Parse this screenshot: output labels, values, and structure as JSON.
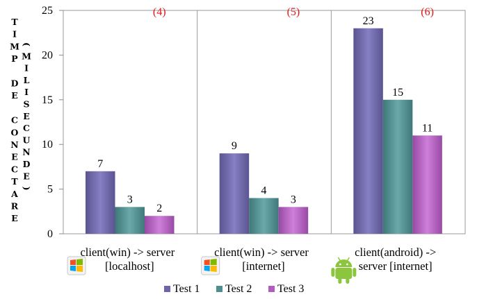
{
  "chart_data": {
    "type": "bar",
    "title": "",
    "categories": [
      [
        "client(win) -> server",
        "[localhost]"
      ],
      [
        "client(win) -> server",
        "[internet]"
      ],
      [
        "client(android) ->",
        "server [internet]"
      ]
    ],
    "category_icons": [
      "windows-logo-icon",
      "windows-logo-icon",
      "android-robot-icon"
    ],
    "series": [
      {
        "name": "Test 1",
        "values": [
          7,
          9,
          23
        ],
        "color": "#6b66a8"
      },
      {
        "name": "Test 2",
        "values": [
          3,
          4,
          15
        ],
        "color": "#4e8e8f"
      },
      {
        "name": "Test 3",
        "values": [
          2,
          3,
          11
        ],
        "color": "#b25cbf"
      }
    ],
    "data_labels": [
      [
        "7",
        "9",
        "23"
      ],
      [
        "3",
        "4",
        "15"
      ],
      [
        "2",
        "3",
        "11"
      ]
    ],
    "annotations": [
      "(4)",
      "(5)",
      "(6)"
    ],
    "ylabel_left": [
      "T",
      "I",
      "M",
      "P",
      "",
      "D",
      "E",
      "",
      "C",
      "O",
      "N",
      "E",
      "C",
      "T",
      "A",
      "R",
      "E"
    ],
    "ylabel_right": [
      "(",
      "M",
      "I",
      "L",
      "I",
      "S",
      "E",
      "C",
      "U",
      "N",
      "D",
      "E",
      ")"
    ],
    "ylim": [
      0,
      25
    ],
    "yticks": [
      "0",
      "5",
      "10",
      "15",
      "20",
      "25"
    ],
    "grid": {
      "vertical_separators": true,
      "horizontal": false
    },
    "legend_position": "bottom",
    "annotation_color": "#e01818"
  }
}
